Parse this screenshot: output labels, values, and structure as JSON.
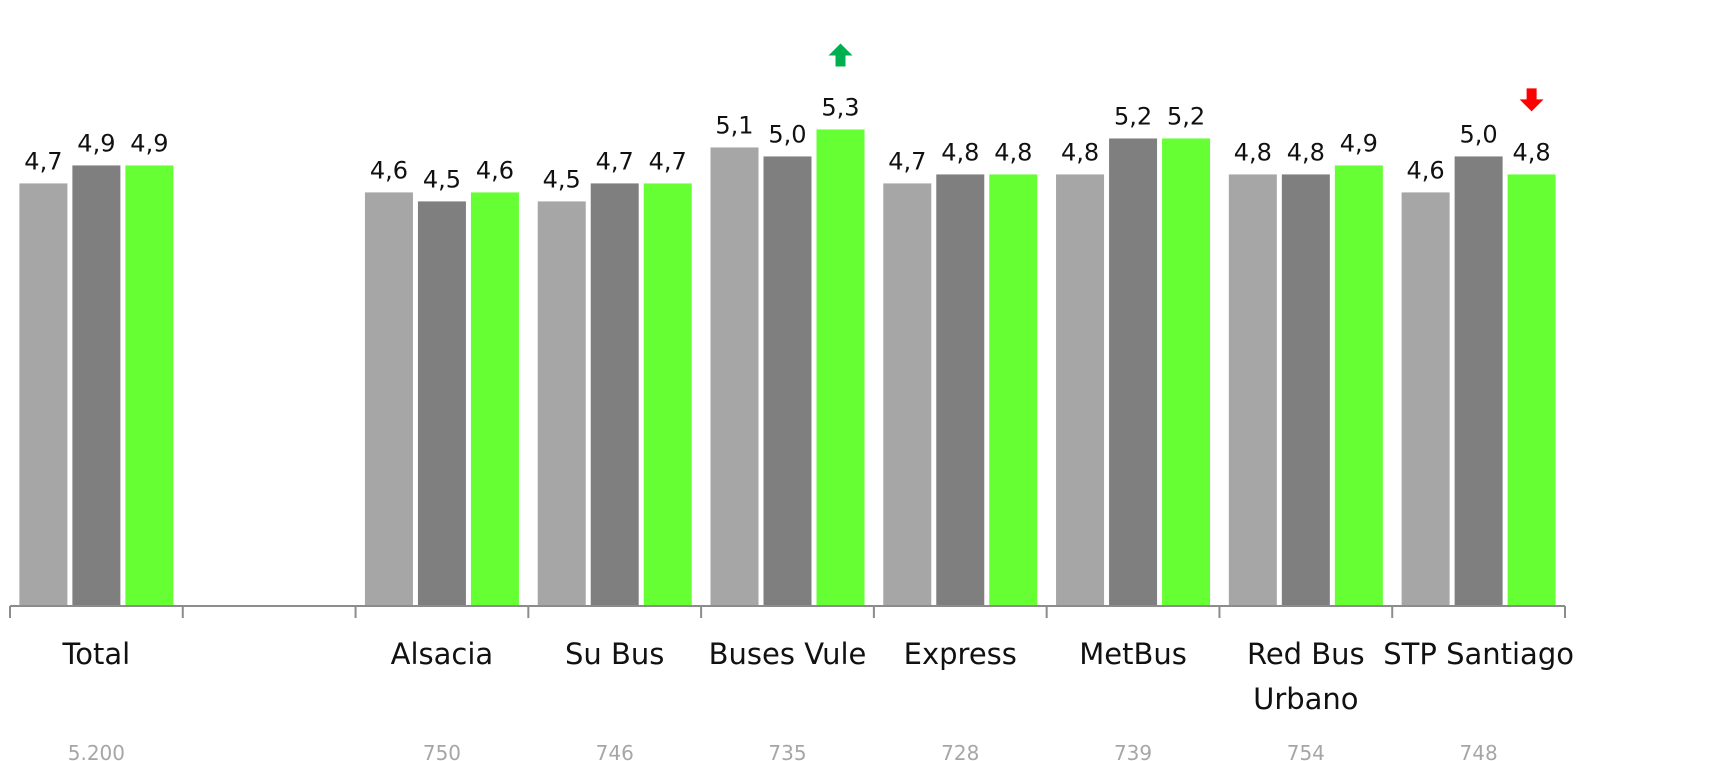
{
  "chart_data": {
    "type": "bar",
    "categories": [
      "Total",
      "",
      "Alsacia",
      "Su Bus",
      "Buses Vule",
      "Express",
      "MetBus",
      "Red Bus Urbano",
      "STP Santiago"
    ],
    "category_lines": [
      [
        "Total"
      ],
      [],
      [
        "Alsacia"
      ],
      [
        "Su Bus"
      ],
      [
        "Buses Vule"
      ],
      [
        "Express"
      ],
      [
        "MetBus"
      ],
      [
        "Red Bus",
        "Urbano"
      ],
      [
        "STP Santiago"
      ]
    ],
    "series": [
      {
        "values": [
          4.7,
          null,
          4.6,
          4.5,
          5.1,
          4.7,
          4.8,
          4.8,
          4.6
        ],
        "color": "#a6a6a6"
      },
      {
        "values": [
          4.9,
          null,
          4.5,
          4.7,
          5.0,
          4.8,
          5.2,
          4.8,
          5.0
        ],
        "color": "#7f7f7f"
      },
      {
        "values": [
          4.9,
          null,
          4.6,
          4.7,
          5.3,
          4.8,
          5.2,
          4.9,
          4.8
        ],
        "color": "#66ff33"
      }
    ],
    "labels": [
      [
        "4,7",
        "",
        "4,6",
        "4,5",
        "5,1",
        "4,7",
        "4,8",
        "4,8",
        "4,6"
      ],
      [
        "4,9",
        "",
        "4,5",
        "4,7",
        "5,0",
        "4,8",
        "5,2",
        "4,8",
        "5,0"
      ],
      [
        "4,9",
        "",
        "4,6",
        "4,7",
        "5,3",
        "4,8",
        "5,2",
        "4,9",
        "4,8"
      ]
    ],
    "sample_sizes": [
      "5.200",
      "",
      "750",
      "746",
      "735",
      "728",
      "739",
      "754",
      "748"
    ],
    "ylim": [
      0,
      5.65
    ],
    "grid": false,
    "legend": "none",
    "annotations": [
      {
        "category_index": 4,
        "series_index": 2,
        "symbol": "arrow-up",
        "color": "#00b050"
      },
      {
        "category_index": 8,
        "series_index": 2,
        "symbol": "arrow-down",
        "color": "#ff0000"
      }
    ]
  }
}
